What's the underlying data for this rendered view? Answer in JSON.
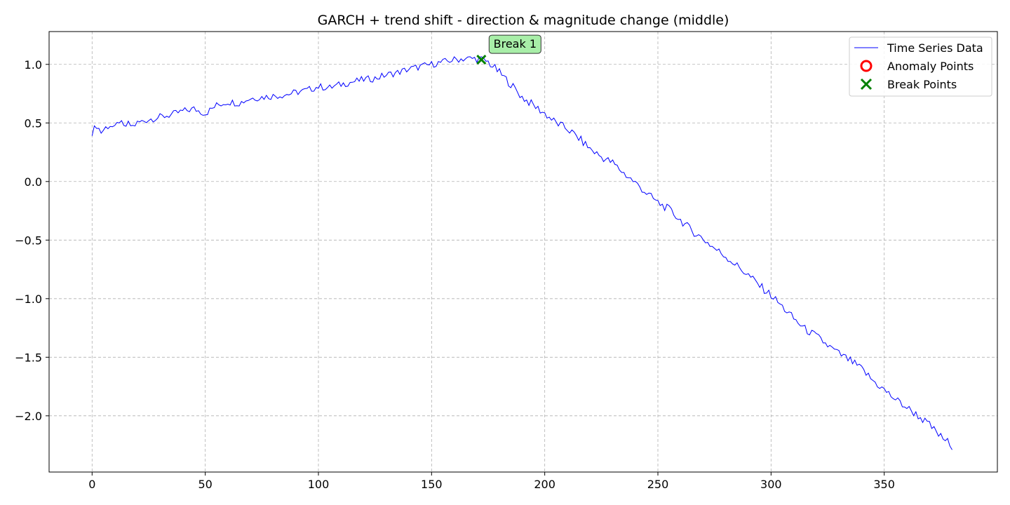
{
  "chart_data": {
    "type": "line",
    "title": "GARCH + trend shift - direction & magnitude change (middle)",
    "xlabel": "",
    "ylabel": "",
    "xlim": [
      -19,
      400
    ],
    "ylim": [
      -2.48,
      1.28
    ],
    "xticks": [
      0,
      50,
      100,
      150,
      200,
      250,
      300,
      350
    ],
    "yticks": [
      1.0,
      0.5,
      0.0,
      -0.5,
      -1.0,
      -1.5,
      -2.0
    ],
    "xtick_labels": [
      "0",
      "50",
      "100",
      "150",
      "200",
      "250",
      "300",
      "350"
    ],
    "ytick_labels": [
      "1.0",
      "0.5",
      "0.0",
      "−0.5",
      "−1.0",
      "−1.5",
      "−2.0"
    ],
    "grid": true,
    "legend_position": "top-right",
    "legend": [
      {
        "label": "Time Series Data",
        "marker": "line",
        "color": "#0000ff"
      },
      {
        "label": "Anomaly Points",
        "marker": "circle",
        "color": "#ff0000"
      },
      {
        "label": "Break Points",
        "marker": "x",
        "color": "#008000"
      }
    ],
    "series": [
      {
        "name": "Time Series Data",
        "color": "#0000ff",
        "x": [
          0,
          2,
          4,
          6,
          8,
          10,
          12,
          14,
          16,
          18,
          20,
          25,
          30,
          35,
          40,
          45,
          50,
          55,
          60,
          65,
          70,
          75,
          80,
          85,
          90,
          95,
          100,
          105,
          110,
          115,
          120,
          125,
          130,
          135,
          140,
          145,
          150,
          155,
          160,
          165,
          170,
          172,
          175,
          180,
          185,
          190,
          195,
          200,
          205,
          210,
          215,
          220,
          225,
          230,
          235,
          240,
          245,
          250,
          255,
          260,
          265,
          270,
          275,
          280,
          285,
          290,
          295,
          300,
          305,
          310,
          315,
          320,
          325,
          330,
          335,
          340,
          345,
          350,
          355,
          360,
          365,
          370,
          375,
          378,
          380
        ],
        "y": [
          0.42,
          0.48,
          0.42,
          0.46,
          0.48,
          0.45,
          0.52,
          0.46,
          0.49,
          0.47,
          0.5,
          0.53,
          0.55,
          0.57,
          0.6,
          0.62,
          0.58,
          0.65,
          0.68,
          0.67,
          0.71,
          0.72,
          0.73,
          0.74,
          0.76,
          0.78,
          0.81,
          0.8,
          0.83,
          0.85,
          0.87,
          0.88,
          0.91,
          0.93,
          0.96,
          0.98,
          1.0,
          1.02,
          1.04,
          1.05,
          1.05,
          1.04,
          1.02,
          0.93,
          0.83,
          0.72,
          0.65,
          0.58,
          0.5,
          0.45,
          0.37,
          0.28,
          0.21,
          0.16,
          0.07,
          -0.01,
          -0.1,
          -0.18,
          -0.24,
          -0.33,
          -0.42,
          -0.49,
          -0.57,
          -0.64,
          -0.72,
          -0.8,
          -0.89,
          -0.97,
          -1.07,
          -1.17,
          -1.26,
          -1.32,
          -1.4,
          -1.47,
          -1.53,
          -1.6,
          -1.7,
          -1.78,
          -1.86,
          -1.93,
          -2.0,
          -2.08,
          -2.18,
          -2.22,
          -2.29
        ]
      }
    ],
    "anomaly_points": [],
    "break_points": [
      {
        "x": 172,
        "y": 1.04,
        "label": "Break 1"
      }
    ]
  }
}
